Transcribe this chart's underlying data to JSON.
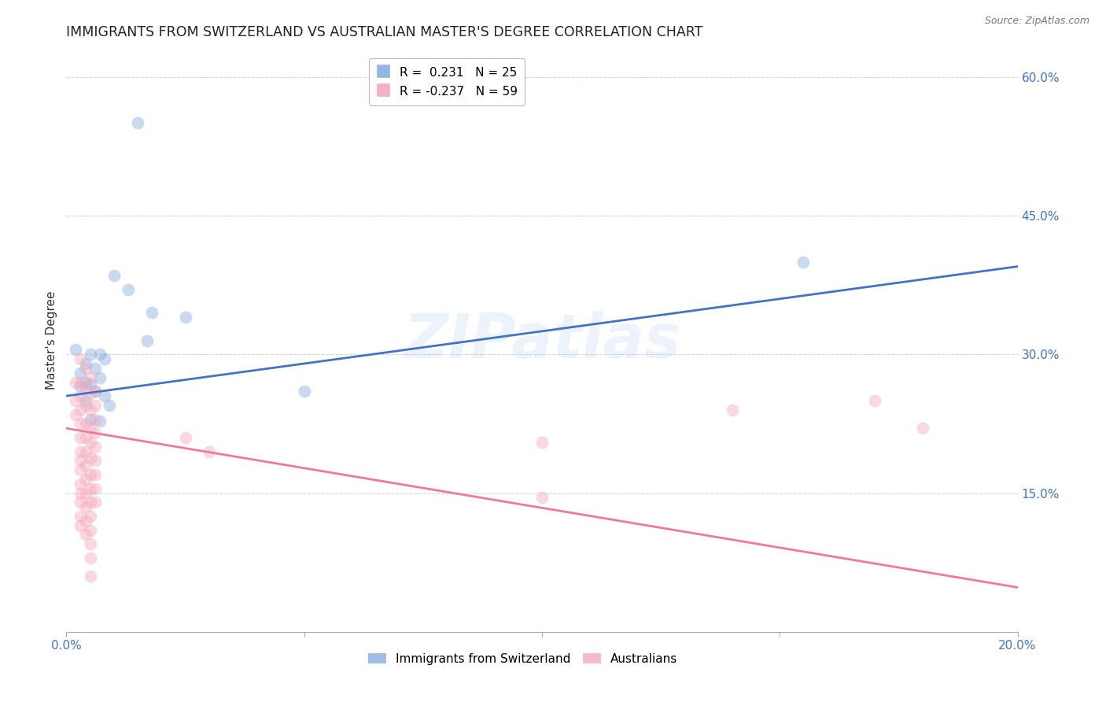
{
  "title": "IMMIGRANTS FROM SWITZERLAND VS AUSTRALIAN MASTER'S DEGREE CORRELATION CHART",
  "source": "Source: ZipAtlas.com",
  "ylabel": "Master's Degree",
  "y_tick_values": [
    0.6,
    0.45,
    0.3,
    0.15
  ],
  "xlim": [
    0.0,
    0.2
  ],
  "ylim": [
    0.0,
    0.63
  ],
  "blue_color": "#89AEDD",
  "pink_color": "#F4AABC",
  "blue_line_color": "#4472C4",
  "pink_line_color": "#EE7A9B",
  "watermark": "ZIPatlas",
  "blue_points": [
    [
      0.015,
      0.55
    ],
    [
      0.01,
      0.385
    ],
    [
      0.013,
      0.37
    ],
    [
      0.018,
      0.345
    ],
    [
      0.025,
      0.34
    ],
    [
      0.017,
      0.315
    ],
    [
      0.002,
      0.305
    ],
    [
      0.005,
      0.3
    ],
    [
      0.007,
      0.3
    ],
    [
      0.008,
      0.295
    ],
    [
      0.004,
      0.29
    ],
    [
      0.006,
      0.285
    ],
    [
      0.003,
      0.28
    ],
    [
      0.007,
      0.275
    ],
    [
      0.004,
      0.27
    ],
    [
      0.005,
      0.268
    ],
    [
      0.003,
      0.265
    ],
    [
      0.006,
      0.26
    ],
    [
      0.008,
      0.255
    ],
    [
      0.004,
      0.25
    ],
    [
      0.009,
      0.245
    ],
    [
      0.005,
      0.23
    ],
    [
      0.007,
      0.228
    ],
    [
      0.05,
      0.26
    ],
    [
      0.155,
      0.4
    ]
  ],
  "pink_points": [
    [
      0.002,
      0.27
    ],
    [
      0.002,
      0.25
    ],
    [
      0.002,
      0.235
    ],
    [
      0.003,
      0.295
    ],
    [
      0.003,
      0.27
    ],
    [
      0.003,
      0.255
    ],
    [
      0.003,
      0.24
    ],
    [
      0.003,
      0.225
    ],
    [
      0.003,
      0.21
    ],
    [
      0.003,
      0.195
    ],
    [
      0.003,
      0.185
    ],
    [
      0.003,
      0.175
    ],
    [
      0.003,
      0.16
    ],
    [
      0.003,
      0.15
    ],
    [
      0.003,
      0.14
    ],
    [
      0.003,
      0.125
    ],
    [
      0.003,
      0.115
    ],
    [
      0.004,
      0.285
    ],
    [
      0.004,
      0.265
    ],
    [
      0.004,
      0.245
    ],
    [
      0.004,
      0.225
    ],
    [
      0.004,
      0.21
    ],
    [
      0.004,
      0.195
    ],
    [
      0.004,
      0.18
    ],
    [
      0.004,
      0.165
    ],
    [
      0.004,
      0.15
    ],
    [
      0.004,
      0.135
    ],
    [
      0.004,
      0.12
    ],
    [
      0.004,
      0.105
    ],
    [
      0.005,
      0.275
    ],
    [
      0.005,
      0.258
    ],
    [
      0.005,
      0.24
    ],
    [
      0.005,
      0.22
    ],
    [
      0.005,
      0.205
    ],
    [
      0.005,
      0.188
    ],
    [
      0.005,
      0.17
    ],
    [
      0.005,
      0.155
    ],
    [
      0.005,
      0.14
    ],
    [
      0.005,
      0.125
    ],
    [
      0.005,
      0.11
    ],
    [
      0.005,
      0.095
    ],
    [
      0.005,
      0.08
    ],
    [
      0.005,
      0.06
    ],
    [
      0.006,
      0.26
    ],
    [
      0.006,
      0.245
    ],
    [
      0.006,
      0.23
    ],
    [
      0.006,
      0.215
    ],
    [
      0.006,
      0.2
    ],
    [
      0.006,
      0.185
    ],
    [
      0.006,
      0.17
    ],
    [
      0.006,
      0.155
    ],
    [
      0.006,
      0.14
    ],
    [
      0.025,
      0.21
    ],
    [
      0.03,
      0.195
    ],
    [
      0.1,
      0.205
    ],
    [
      0.17,
      0.25
    ],
    [
      0.18,
      0.22
    ],
    [
      0.1,
      0.145
    ],
    [
      0.14,
      0.24
    ]
  ],
  "blue_line_x": [
    0.0,
    0.2
  ],
  "blue_line_y": [
    0.255,
    0.395
  ],
  "pink_line_x": [
    0.0,
    0.2
  ],
  "pink_line_y": [
    0.22,
    0.048
  ],
  "scatter_size": 130,
  "scatter_alpha": 0.45,
  "title_fontsize": 12.5,
  "axis_label_fontsize": 11,
  "tick_fontsize": 11,
  "legend_fontsize": 11,
  "grid_color": "#CCCCCC",
  "grid_alpha": 0.8,
  "background_color": "#FFFFFF"
}
